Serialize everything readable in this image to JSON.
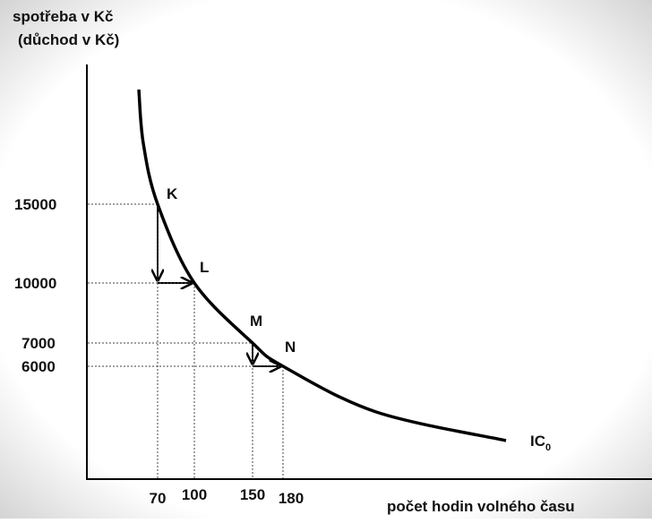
{
  "y_axis_label": [
    "spotřeba v Kč",
    "(důchod v Kč)"
  ],
  "x_axis_label": "počet hodin volného času",
  "y_ticks": [
    "15000",
    "10000",
    "7000",
    "6000"
  ],
  "x_ticks": [
    "70",
    "100",
    "150",
    "180"
  ],
  "points": [
    "K",
    "L",
    "M",
    "N"
  ],
  "curve_label": {
    "text": "IC",
    "subscript": "0"
  }
}
